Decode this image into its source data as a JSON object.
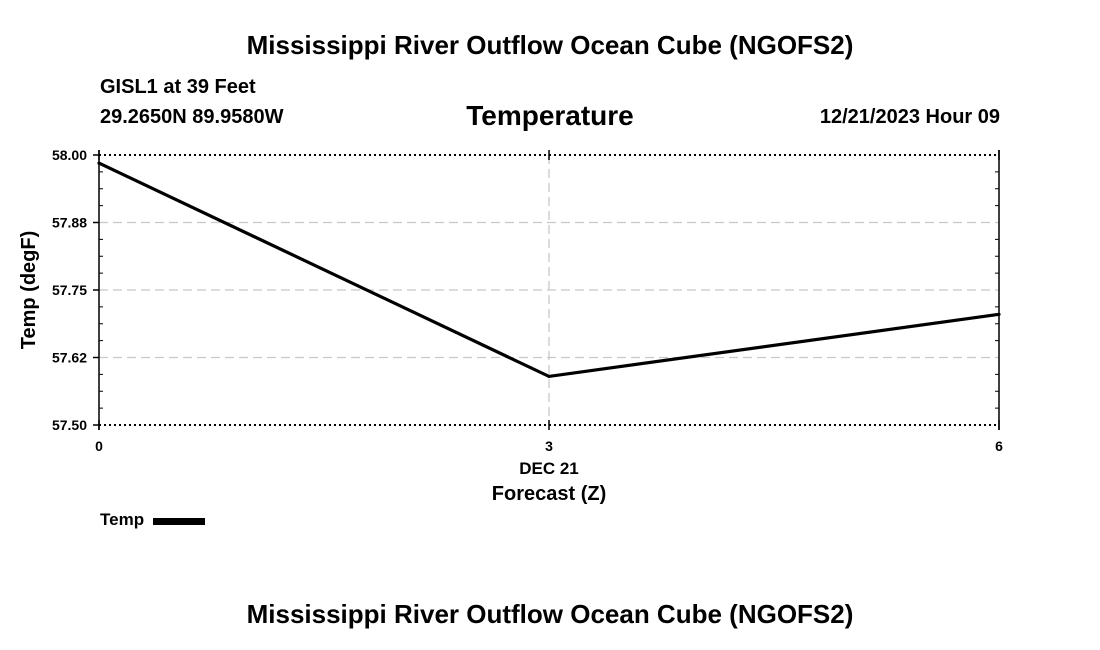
{
  "page": {
    "title": "Mississippi River Outflow Ocean Cube (NGOFS2)",
    "footer_title": "Mississippi River Outflow Ocean Cube (NGOFS2)",
    "station": "GISL1 at 39 Feet",
    "coordinates": "29.2650N  89.9580W",
    "datetime": "12/21/2023 Hour 09"
  },
  "chart_data": {
    "type": "line",
    "title": "Temperature",
    "xlabel": "Forecast (Z)",
    "ylabel": "Temp (degF)",
    "date_label": "DEC 21",
    "xlim": [
      0,
      6
    ],
    "ylim": [
      57.5,
      58.0
    ],
    "x_ticks": [
      0,
      3,
      6
    ],
    "x_tick_labels": [
      "0",
      "3",
      "6"
    ],
    "y_ticks": [
      57.5,
      57.625,
      57.75,
      57.875,
      58.0
    ],
    "y_tick_labels": [
      "57.50",
      "57.62",
      "57.75",
      "57.88",
      "58.00"
    ],
    "grid": true,
    "legend_position": "bottom-left",
    "series": [
      {
        "name": "Temp",
        "x": [
          0,
          3,
          6
        ],
        "values": [
          57.985,
          57.59,
          57.705
        ]
      }
    ]
  },
  "colors": {
    "line": "#000000",
    "grid": "#c8c8c8",
    "background": "#ffffff"
  }
}
